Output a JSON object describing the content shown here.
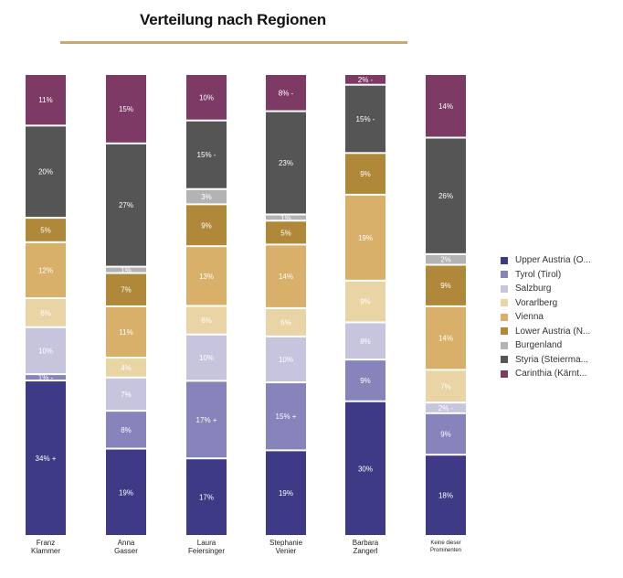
{
  "title": "Verteilung nach Regionen",
  "colors": {
    "Upper Austria (O...": "#3f3a86",
    "Tyrol (Tirol)": "#8783bb",
    "Salzburg": "#c7c5de",
    "Vorarlberg": "#e8d4a4",
    "Vienna": "#d9b06a",
    "Lower Austria (N...": "#b0883a",
    "Burgenland": "#b3b3b3",
    "Styria (Steierma...": "#555555",
    "Carinthia (Kärnt...": "#7c3a65"
  },
  "chart_data": {
    "type": "bar",
    "stacked": true,
    "normalized": true,
    "title": "Verteilung nach Regionen",
    "categories": [
      [
        "Franz",
        "Klammer"
      ],
      [
        "Anna",
        "Gasser"
      ],
      [
        "Laura",
        "Feiersinger"
      ],
      [
        "Stephanie",
        "Venier"
      ],
      [
        "Barbara",
        "Zangerl"
      ],
      [
        "Keine dieser",
        "Prominenten"
      ]
    ],
    "series": [
      {
        "name": "Upper Austria (O...",
        "values": [
          34,
          19,
          17,
          19,
          30,
          18
        ],
        "labels": [
          "34% +",
          "19%",
          "17%",
          "19%",
          "30%",
          "18%"
        ]
      },
      {
        "name": "Tyrol (Tirol)",
        "values": [
          1,
          8,
          17,
          15,
          9,
          9
        ],
        "labels": [
          "1% -",
          "8%",
          "17% +",
          "15% +",
          "9%",
          "9%"
        ]
      },
      {
        "name": "Salzburg",
        "values": [
          10,
          7,
          10,
          10,
          8,
          2
        ],
        "labels": [
          "10%",
          "7%",
          "10%",
          "10%",
          "8%",
          "2% -"
        ]
      },
      {
        "name": "Vorarlberg",
        "values": [
          6,
          4,
          6,
          6,
          9,
          7
        ],
        "labels": [
          "6%",
          "4%",
          "6%",
          "6%",
          "9%",
          "7%"
        ]
      },
      {
        "name": "Vienna",
        "values": [
          12,
          11,
          13,
          14,
          19,
          14
        ],
        "labels": [
          "12%",
          "11%",
          "13%",
          "14%",
          "19%",
          "14%"
        ]
      },
      {
        "name": "Lower Austria (N...",
        "values": [
          5,
          7,
          9,
          5,
          9,
          9
        ],
        "labels": [
          "5%",
          "7%",
          "9%",
          "5%",
          "9%",
          "9%"
        ]
      },
      {
        "name": "Burgenland",
        "values": [
          0,
          1,
          3,
          1,
          0,
          2
        ],
        "labels": [
          "",
          "1%",
          "3%",
          "1%",
          "",
          "2%"
        ]
      },
      {
        "name": "Styria (Steierma...",
        "values": [
          20,
          27,
          15,
          23,
          15,
          26
        ],
        "labels": [
          "20%",
          "27%",
          "15% -",
          "23%",
          "15% -",
          "26%"
        ]
      },
      {
        "name": "Carinthia (Kärnt...",
        "values": [
          11,
          15,
          10,
          8,
          2,
          14
        ],
        "labels": [
          "11%",
          "15%",
          "10%",
          "8% -",
          "2% -",
          "14%"
        ]
      }
    ],
    "legend_position": "right",
    "grid": false
  }
}
